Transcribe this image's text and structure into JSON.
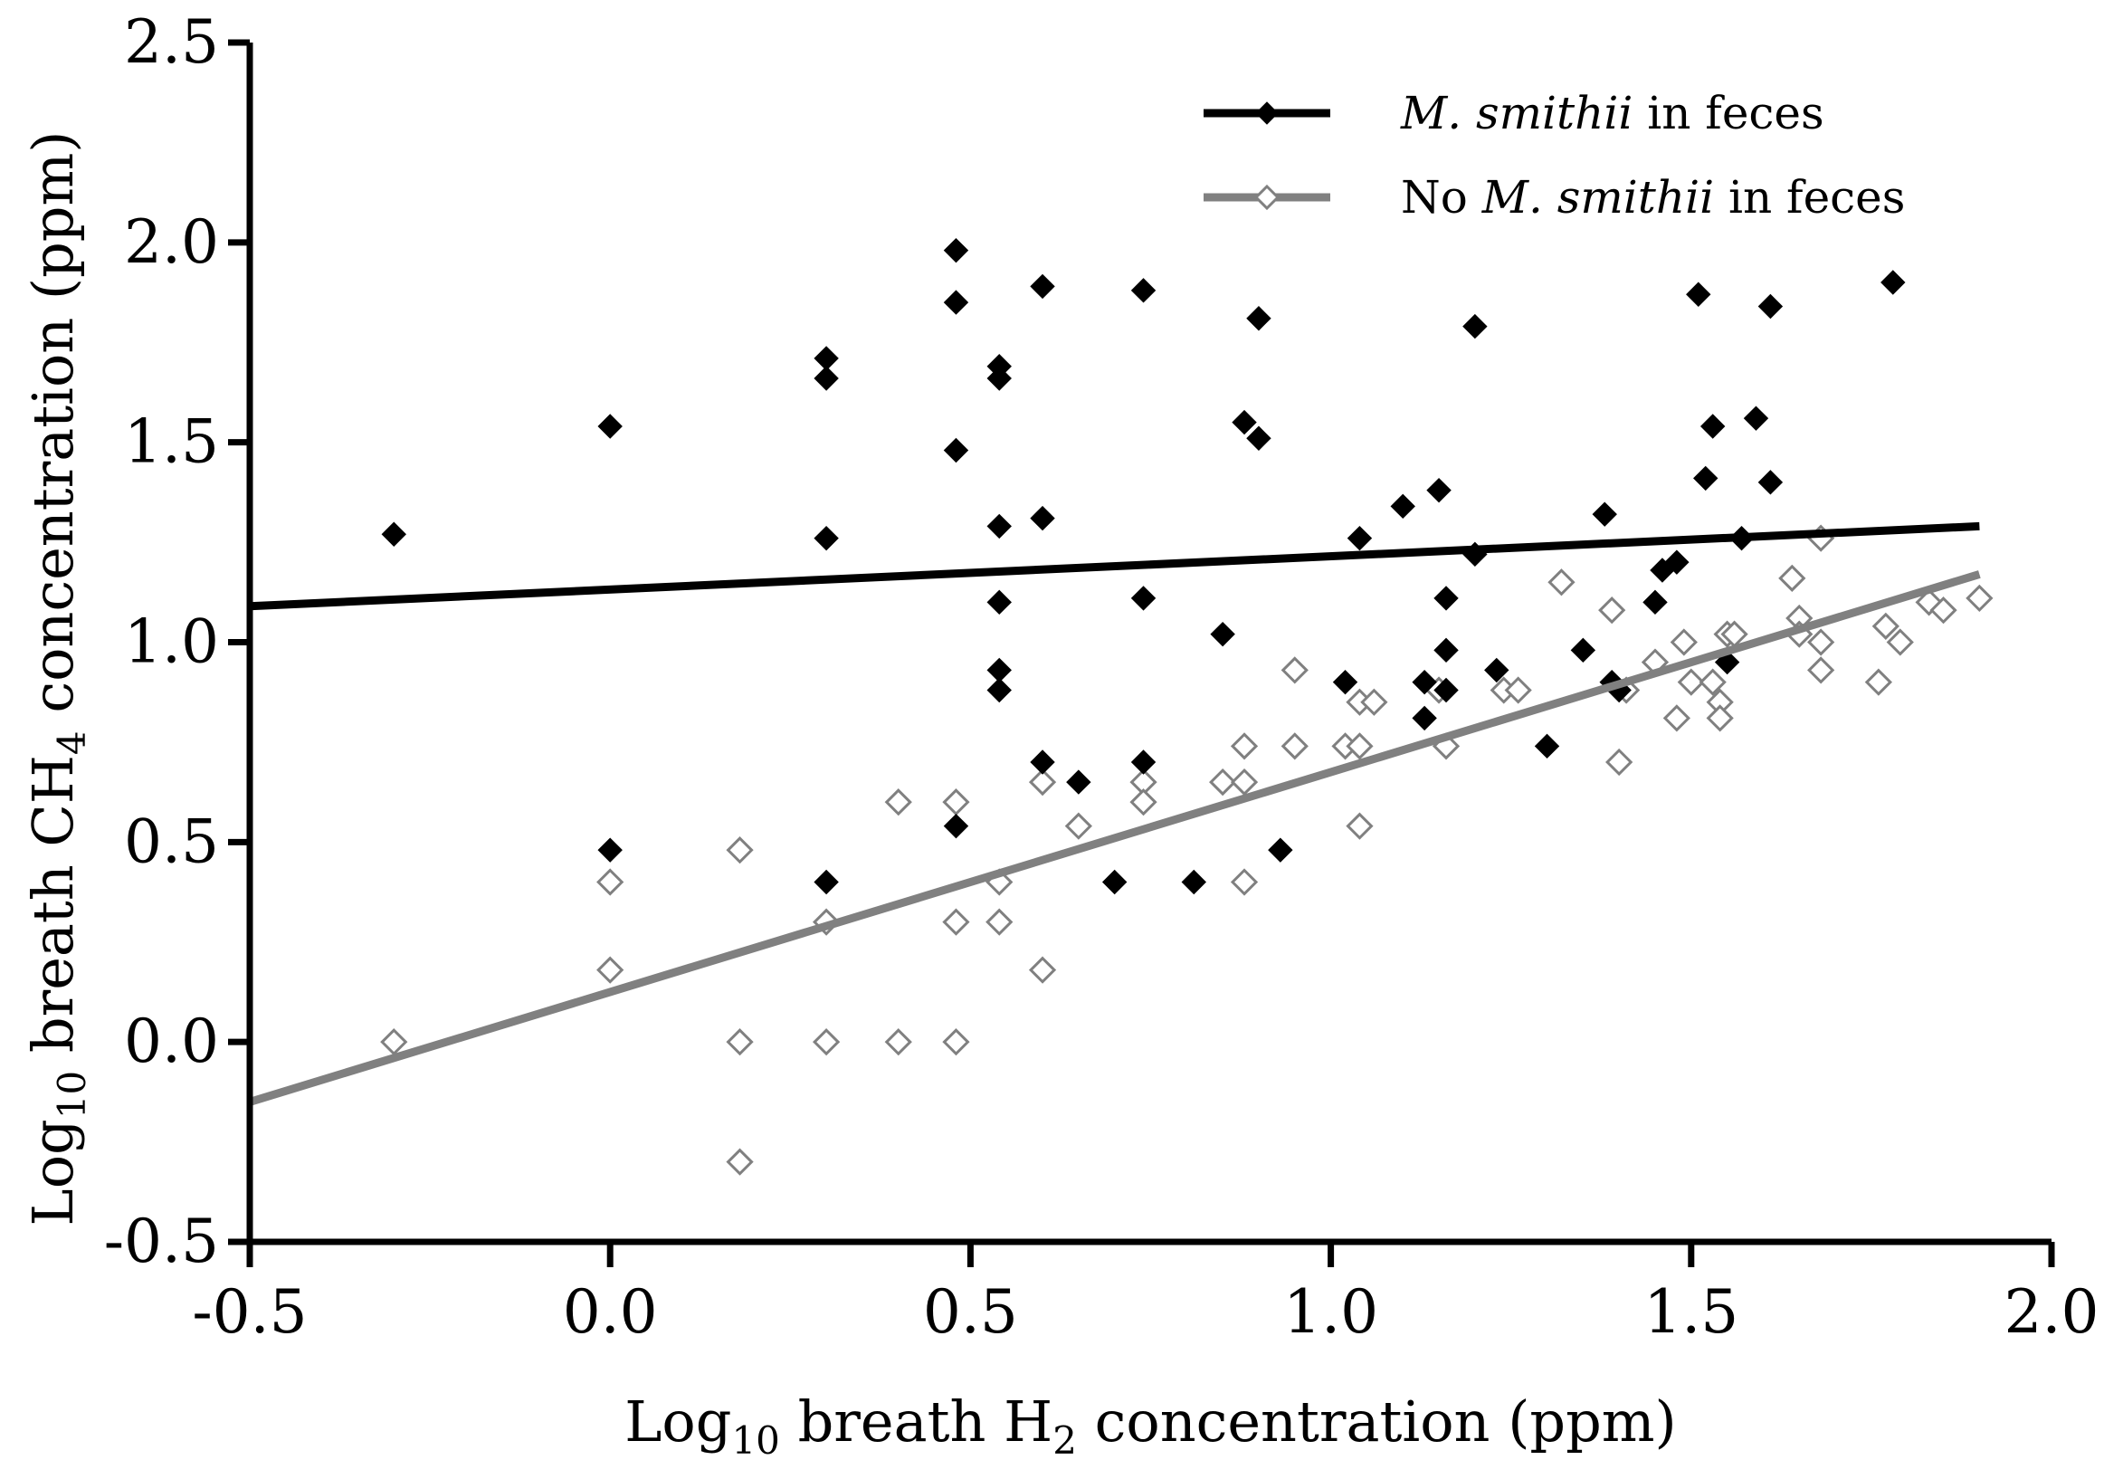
{
  "chart_data": {
    "type": "scatter",
    "title": "",
    "xlabel": "Log10 breath H2 concentration (ppm)",
    "ylabel": "Log10 breath CH4 concentration (ppm)",
    "xlabel_parts": {
      "pre": "Log",
      "sub1": "10",
      "mid": " breath H",
      "sub2": "2",
      "post": " concentration (ppm)"
    },
    "ylabel_parts": {
      "pre": "Log",
      "sub1": "10",
      "mid": " breath CH",
      "sub2": "4",
      "post": " concentration (ppm)"
    },
    "xlim": [
      -0.5,
      2.0
    ],
    "ylim": [
      -0.5,
      2.5
    ],
    "xticks": [
      -0.5,
      0.0,
      0.5,
      1.0,
      1.5,
      2.0
    ],
    "yticks": [
      -0.5,
      0.0,
      0.5,
      1.0,
      1.5,
      2.0,
      2.5
    ],
    "xtick_labels": [
      "-0.5",
      "0.0",
      "0.5",
      "1.0",
      "1.5",
      "2.0"
    ],
    "ytick_labels": [
      "-0.5",
      "0.0",
      "0.5",
      "1.0",
      "1.5",
      "2.0",
      "2.5"
    ],
    "grid": false,
    "legend_position": "top-right",
    "series": [
      {
        "name": "M. smithii in feces",
        "legend_italic": "M. smithii",
        "legend_rest": " in feces",
        "color": "#000000",
        "marker": "filled-diamond",
        "fit_line": {
          "x": [
            -0.5,
            1.9
          ],
          "y": [
            1.09,
            1.29
          ]
        },
        "points": [
          [
            -0.3,
            1.27
          ],
          [
            0.0,
            1.54
          ],
          [
            0.0,
            0.48
          ],
          [
            0.3,
            1.71
          ],
          [
            0.3,
            1.66
          ],
          [
            0.3,
            1.26
          ],
          [
            0.3,
            0.4
          ],
          [
            0.48,
            1.98
          ],
          [
            0.48,
            1.85
          ],
          [
            0.48,
            1.48
          ],
          [
            0.48,
            0.54
          ],
          [
            0.54,
            1.69
          ],
          [
            0.54,
            1.66
          ],
          [
            0.54,
            1.29
          ],
          [
            0.54,
            1.1
          ],
          [
            0.54,
            0.93
          ],
          [
            0.54,
            0.88
          ],
          [
            0.6,
            1.89
          ],
          [
            0.6,
            1.31
          ],
          [
            0.6,
            0.7
          ],
          [
            0.65,
            0.65
          ],
          [
            0.7,
            0.4
          ],
          [
            0.74,
            1.88
          ],
          [
            0.74,
            1.11
          ],
          [
            0.74,
            0.7
          ],
          [
            0.81,
            0.4
          ],
          [
            0.85,
            1.02
          ],
          [
            0.88,
            1.55
          ],
          [
            0.9,
            1.51
          ],
          [
            0.9,
            1.81
          ],
          [
            0.93,
            0.48
          ],
          [
            1.02,
            0.9
          ],
          [
            1.04,
            1.26
          ],
          [
            1.1,
            1.34
          ],
          [
            1.13,
            0.9
          ],
          [
            1.13,
            0.81
          ],
          [
            1.15,
            1.38
          ],
          [
            1.16,
            1.11
          ],
          [
            1.16,
            0.98
          ],
          [
            1.16,
            0.88
          ],
          [
            1.2,
            1.79
          ],
          [
            1.2,
            1.22
          ],
          [
            1.23,
            0.93
          ],
          [
            1.3,
            0.74
          ],
          [
            1.35,
            0.98
          ],
          [
            1.38,
            1.32
          ],
          [
            1.39,
            0.9
          ],
          [
            1.4,
            0.88
          ],
          [
            1.45,
            1.1
          ],
          [
            1.46,
            1.18
          ],
          [
            1.48,
            1.2
          ],
          [
            1.51,
            1.87
          ],
          [
            1.52,
            1.41
          ],
          [
            1.53,
            1.54
          ],
          [
            1.55,
            0.95
          ],
          [
            1.57,
            1.26
          ],
          [
            1.59,
            1.56
          ],
          [
            1.61,
            1.84
          ],
          [
            1.61,
            1.4
          ],
          [
            1.78,
            1.9
          ]
        ]
      },
      {
        "name": "No M. smithii in feces",
        "legend_pre": "No ",
        "legend_italic": "M. smithii",
        "legend_rest": " in feces",
        "color": "#808080",
        "marker": "open-diamond",
        "fit_line": {
          "x": [
            -0.5,
            1.9
          ],
          "y": [
            -0.15,
            1.17
          ]
        },
        "points": [
          [
            -0.3,
            0.0
          ],
          [
            0.0,
            0.4
          ],
          [
            0.0,
            0.18
          ],
          [
            0.18,
            0.48
          ],
          [
            0.18,
            0.0
          ],
          [
            0.18,
            -0.3
          ],
          [
            0.3,
            0.3
          ],
          [
            0.3,
            0.0
          ],
          [
            0.4,
            0.6
          ],
          [
            0.4,
            0.0
          ],
          [
            0.48,
            0.6
          ],
          [
            0.48,
            0.3
          ],
          [
            0.48,
            0.0
          ],
          [
            0.54,
            0.4
          ],
          [
            0.54,
            0.3
          ],
          [
            0.6,
            0.65
          ],
          [
            0.6,
            0.18
          ],
          [
            0.65,
            0.54
          ],
          [
            0.74,
            0.65
          ],
          [
            0.74,
            0.6
          ],
          [
            0.85,
            0.65
          ],
          [
            0.88,
            0.74
          ],
          [
            0.88,
            0.65
          ],
          [
            0.88,
            0.4
          ],
          [
            0.95,
            0.93
          ],
          [
            0.95,
            0.74
          ],
          [
            1.02,
            0.74
          ],
          [
            1.04,
            0.85
          ],
          [
            1.04,
            0.74
          ],
          [
            1.04,
            0.54
          ],
          [
            1.06,
            0.85
          ],
          [
            1.15,
            0.88
          ],
          [
            1.16,
            0.74
          ],
          [
            1.24,
            0.88
          ],
          [
            1.26,
            0.88
          ],
          [
            1.32,
            1.15
          ],
          [
            1.39,
            1.08
          ],
          [
            1.4,
            0.7
          ],
          [
            1.41,
            0.88
          ],
          [
            1.45,
            0.95
          ],
          [
            1.48,
            0.81
          ],
          [
            1.49,
            1.0
          ],
          [
            1.5,
            0.9
          ],
          [
            1.53,
            0.9
          ],
          [
            1.54,
            0.85
          ],
          [
            1.54,
            0.81
          ],
          [
            1.55,
            1.02
          ],
          [
            1.56,
            1.02
          ],
          [
            1.64,
            1.16
          ],
          [
            1.65,
            1.06
          ],
          [
            1.65,
            1.02
          ],
          [
            1.68,
            1.26
          ],
          [
            1.68,
            1.0
          ],
          [
            1.68,
            0.93
          ],
          [
            1.76,
            0.9
          ],
          [
            1.77,
            1.04
          ],
          [
            1.79,
            1.0
          ],
          [
            1.83,
            1.1
          ],
          [
            1.85,
            1.08
          ],
          [
            1.9,
            1.11
          ]
        ]
      }
    ]
  }
}
